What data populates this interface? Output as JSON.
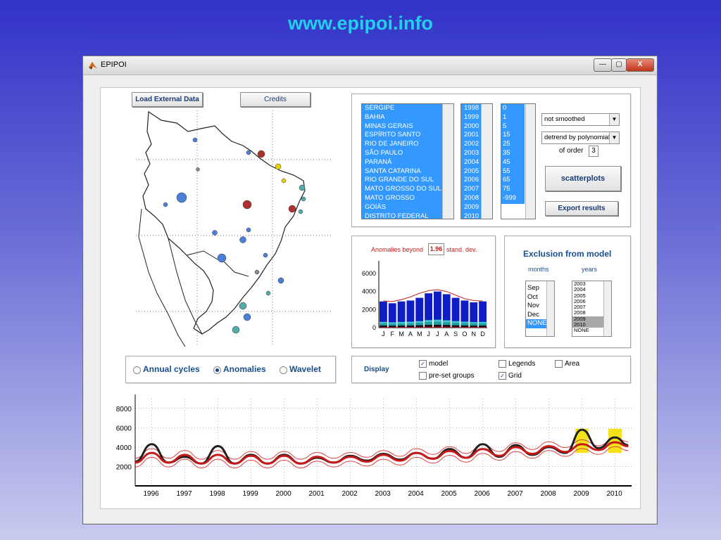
{
  "slide_title": "www.epipoi.info",
  "window": {
    "title": "EPIPOI",
    "minimize": "—",
    "maximize": "▢",
    "close": "X"
  },
  "buttons": {
    "load": "Load External Data",
    "credits": "Credits",
    "scatter": "scatterplots",
    "export": "Export results"
  },
  "states": [
    "SERGIPE",
    "BAHIA",
    "MINAS GERAIS",
    "ESPÍRITO SANTO",
    "RIO DE JANEIRO",
    "SÃO PAULO",
    "PARANÁ",
    "SANTA CATARINA",
    "RIO GRANDE DO SUL",
    "MATO GROSSO DO SUL",
    "MATO GROSSO",
    "GOIÁS",
    "DISTRITO FEDERAL"
  ],
  "years_list": [
    "1998",
    "1999",
    "2000",
    "2001",
    "2002",
    "2003",
    "2004",
    "2005",
    "2006",
    "2007",
    "2008",
    "2009",
    "2010"
  ],
  "values_list": [
    "0",
    "1",
    "5",
    "15",
    "25",
    "35",
    "45",
    "55",
    "65",
    "75",
    "-999"
  ],
  "smoothing": {
    "selected": "not smoothed"
  },
  "detrend": {
    "selected": "detrend by polynomial",
    "order_label": "of order",
    "order_value": "3"
  },
  "anomalies_panel": {
    "label_pre": "Anomalies beyond",
    "threshold": "1.96",
    "label_post": "stand. dev.",
    "y_ticks": [
      "6000",
      "4000",
      "2000",
      "0"
    ],
    "month_labels": [
      "J",
      "F",
      "M",
      "A",
      "M",
      "J",
      "J",
      "A",
      "S",
      "O",
      "N",
      "D"
    ]
  },
  "exclusion": {
    "title": "Exclusion from model",
    "months_label": "months",
    "years_label": "years",
    "months": [
      "Sep",
      "Oct",
      "Nov",
      "Dec",
      "NONE"
    ],
    "years": [
      "2003",
      "2004",
      "2005",
      "2006",
      "2007",
      "2008",
      "2009",
      "2010",
      "NONE"
    ]
  },
  "mode": {
    "options": [
      "Annual cycles",
      "Anomalies",
      "Wavelet"
    ],
    "selected": "Anomalies"
  },
  "display": {
    "label": "Display",
    "model": {
      "label": "model",
      "checked": true
    },
    "preset": {
      "label": "pre-set groups",
      "checked": false
    },
    "legends": {
      "label": "Legends",
      "checked": false
    },
    "grid": {
      "label": "Grid",
      "checked": true
    },
    "area": {
      "label": "Area",
      "checked": false
    }
  },
  "chart_data": [
    {
      "type": "bar",
      "categories": [
        "J",
        "F",
        "M",
        "A",
        "M",
        "J",
        "J",
        "A",
        "S",
        "O",
        "N",
        "D"
      ],
      "values": [
        2900,
        2700,
        2900,
        3000,
        3300,
        3800,
        4000,
        3700,
        3300,
        3000,
        2800,
        2900
      ],
      "model_line": [
        2950,
        2900,
        3100,
        3400,
        3800,
        4100,
        4200,
        4000,
        3600,
        3200,
        3000,
        2950
      ],
      "ylim": [
        0,
        7000
      ],
      "colors": {
        "bar": "#0f1ec4",
        "model": "#c43c3c"
      }
    },
    {
      "type": "line",
      "x_ticks": [
        "1996",
        "1997",
        "1998",
        "1999",
        "2000",
        "2001",
        "2002",
        "2003",
        "2004",
        "2005",
        "2006",
        "2007",
        "2008",
        "2009",
        "2010"
      ],
      "y_ticks": [
        "8000",
        "6000",
        "4000",
        "2000"
      ],
      "ylim": [
        0,
        9000
      ],
      "xlim": [
        1996,
        2011
      ],
      "observed": [
        [
          1996.0,
          2500
        ],
        [
          1996.5,
          4300
        ],
        [
          1997.0,
          2400
        ],
        [
          1997.5,
          3000
        ],
        [
          1998.0,
          2300
        ],
        [
          1998.5,
          4100
        ],
        [
          1999.0,
          2300
        ],
        [
          1999.5,
          3200
        ],
        [
          2000.0,
          2300
        ],
        [
          2000.5,
          3200
        ],
        [
          2001.0,
          2300
        ],
        [
          2001.5,
          2900
        ],
        [
          2002.0,
          2400
        ],
        [
          2002.5,
          3100
        ],
        [
          2003.0,
          2600
        ],
        [
          2003.5,
          3300
        ],
        [
          2004.0,
          2700
        ],
        [
          2004.5,
          3400
        ],
        [
          2005.0,
          2800
        ],
        [
          2005.5,
          3800
        ],
        [
          2006.0,
          2900
        ],
        [
          2006.5,
          4300
        ],
        [
          2007.0,
          3000
        ],
        [
          2007.5,
          4200
        ],
        [
          2008.0,
          3200
        ],
        [
          2008.5,
          4000
        ],
        [
          2009.0,
          3400
        ],
        [
          2009.5,
          5800
        ],
        [
          2010.0,
          3900
        ],
        [
          2010.5,
          5000
        ],
        [
          2010.9,
          4200
        ]
      ],
      "model_mean": [
        [
          1996.0,
          2400
        ],
        [
          1996.5,
          3400
        ],
        [
          1997.0,
          2400
        ],
        [
          1997.5,
          3200
        ],
        [
          1998.0,
          2300
        ],
        [
          1998.5,
          3200
        ],
        [
          1999.0,
          2300
        ],
        [
          1999.5,
          3100
        ],
        [
          2000.0,
          2300
        ],
        [
          2000.5,
          3100
        ],
        [
          2001.0,
          2300
        ],
        [
          2001.5,
          3000
        ],
        [
          2002.0,
          2400
        ],
        [
          2002.5,
          3000
        ],
        [
          2003.0,
          2500
        ],
        [
          2003.5,
          3200
        ],
        [
          2004.0,
          2600
        ],
        [
          2004.5,
          3400
        ],
        [
          2005.0,
          2800
        ],
        [
          2005.5,
          3600
        ],
        [
          2006.0,
          2900
        ],
        [
          2006.5,
          3800
        ],
        [
          2007.0,
          3100
        ],
        [
          2007.5,
          4000
        ],
        [
          2008.0,
          3300
        ],
        [
          2008.5,
          4100
        ],
        [
          2009.0,
          3500
        ],
        [
          2009.5,
          4300
        ],
        [
          2010.0,
          3700
        ],
        [
          2010.5,
          4500
        ],
        [
          2010.9,
          4100
        ]
      ],
      "colors": {
        "observed": "#202020",
        "model": "#c41a1a",
        "anomaly": "#f2df00"
      }
    }
  ],
  "map_points": [
    {
      "color": "#4b7fd9",
      "size": "small"
    },
    {
      "color": "#4b7fd9",
      "size": "small"
    },
    {
      "color": "#8a8a8a",
      "size": "small"
    },
    {
      "color": "#e6d200",
      "size": "small"
    },
    {
      "color": "#e6d200",
      "size": "small"
    },
    {
      "color": "#b03030",
      "size": "large"
    },
    {
      "color": "#4b7fd9",
      "size": "large"
    },
    {
      "color": "#4b7fd9",
      "size": "small"
    },
    {
      "color": "#55aaaa",
      "size": "small"
    },
    {
      "color": "#b03030",
      "size": "medium"
    },
    {
      "color": "#4b7fd9",
      "size": "medium"
    },
    {
      "color": "#4b7fd9",
      "size": "medium"
    },
    {
      "color": "#55aaaa",
      "size": "medium"
    },
    {
      "color": "#4b7fd9",
      "size": "small"
    }
  ]
}
